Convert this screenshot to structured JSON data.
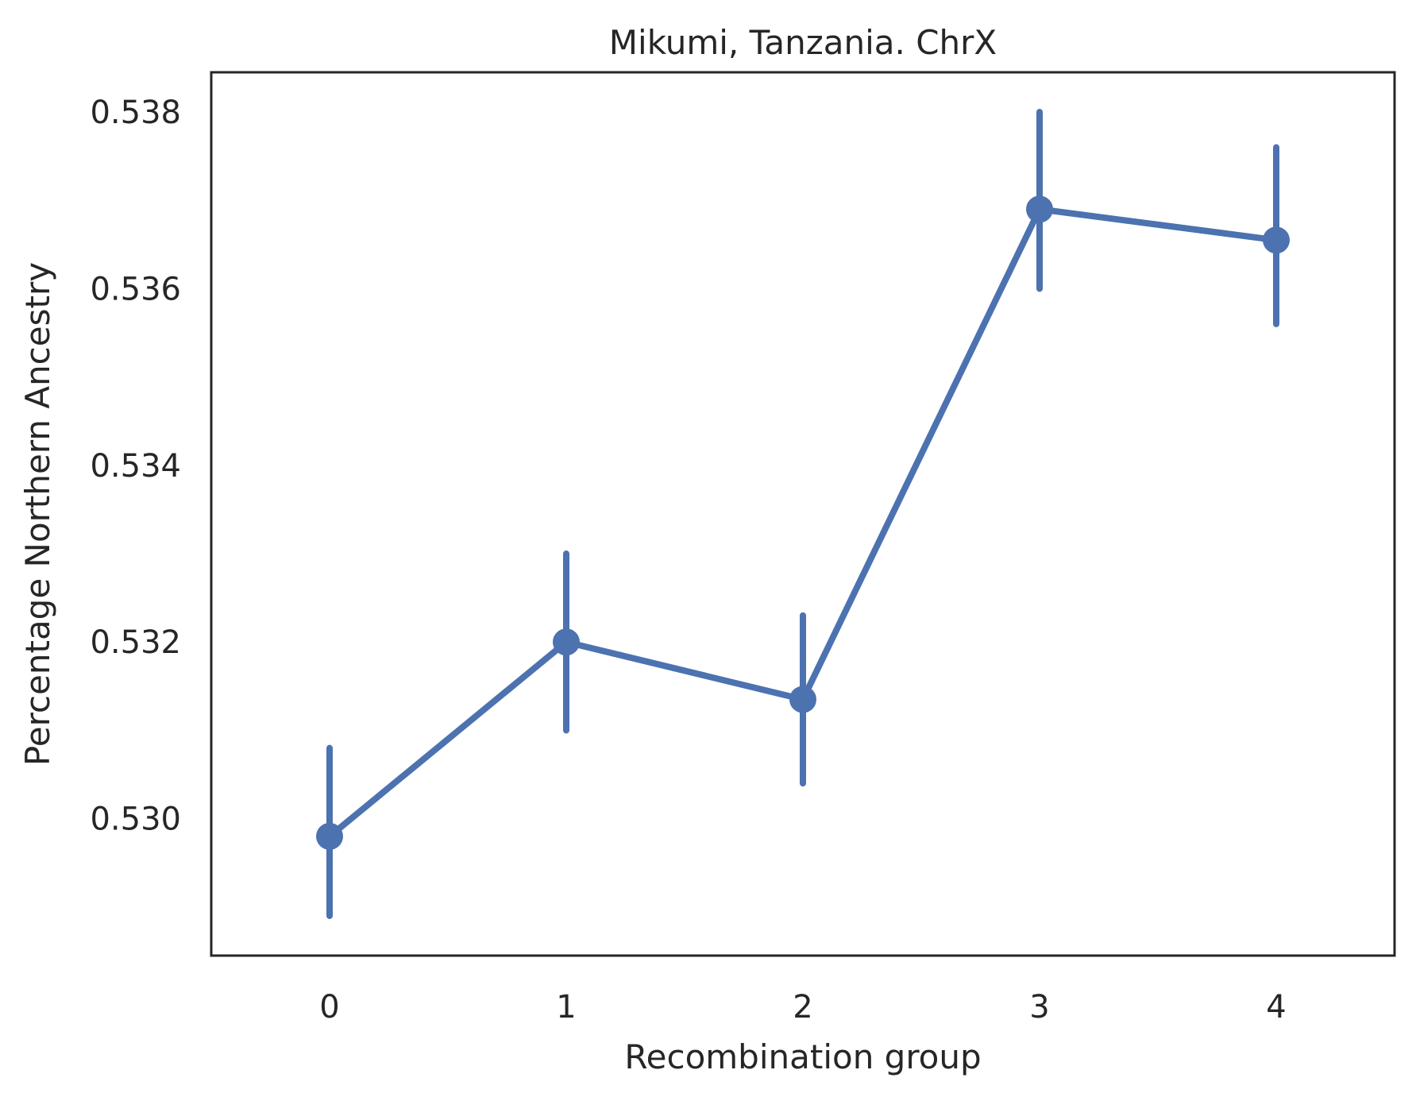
{
  "chart_data": {
    "type": "line",
    "title": "Mikumi, Tanzania. ChrX",
    "xlabel": "Recombination group",
    "ylabel": "Percentage Northern Ancestry",
    "categories": [
      "0",
      "1",
      "2",
      "3",
      "4"
    ],
    "series": [
      {
        "values": [
          0.5298,
          0.532,
          0.53135,
          0.5369,
          0.53655
        ],
        "ci_low": [
          0.5289,
          0.531,
          0.5304,
          0.536,
          0.5356
        ],
        "ci_high": [
          0.5308,
          0.533,
          0.5323,
          0.538,
          0.5376
        ]
      }
    ],
    "yticks": [
      0.53,
      0.532,
      0.534,
      0.536,
      0.538
    ],
    "ytick_labels": [
      "0.530",
      "0.532",
      "0.534",
      "0.536",
      "0.538"
    ],
    "ylim": [
      0.52845,
      0.53845
    ],
    "xlim": [
      -0.5,
      4.5
    ],
    "grid": false,
    "legend": "none",
    "colors": {
      "line": "#4c72b0",
      "axes": "#262626",
      "text": "#262626",
      "background": "#ffffff"
    }
  }
}
